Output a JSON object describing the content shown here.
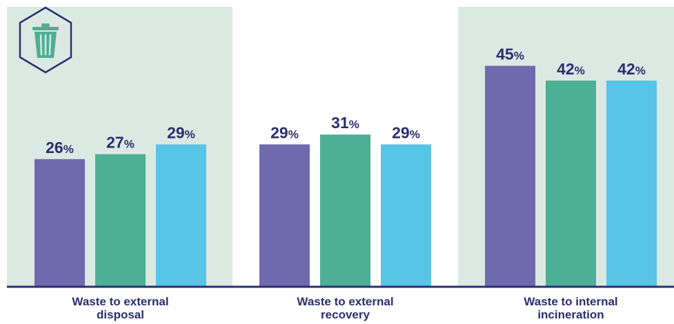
{
  "colors": {
    "panel_bg": "#dbe9e3",
    "axis": "#2a2f6e",
    "text": "#2a2f6e",
    "icon": "#4daf93",
    "icon_border": "#2a2f6e"
  },
  "icon": "trash-bin-icon",
  "chart_data": {
    "type": "bar",
    "categories": [
      "Waste to external disposal",
      "Waste to external recovery",
      "Waste to internal incineration"
    ],
    "category_label_lines": [
      [
        "Waste to external",
        "disposal"
      ],
      [
        "Waste to external",
        "recovery"
      ],
      [
        "Waste to internal",
        "incineration"
      ]
    ],
    "series": [
      {
        "color": "#6f69ae",
        "values": [
          26,
          29,
          45
        ]
      },
      {
        "color": "#4daf93",
        "values": [
          27,
          31,
          42
        ]
      },
      {
        "color": "#58c4e6",
        "values": [
          29,
          29,
          42
        ]
      }
    ],
    "value_suffix": "%",
    "ylim": [
      0,
      57
    ],
    "highlighted_categories": [
      0,
      2
    ],
    "legend": "none",
    "grid": false
  }
}
